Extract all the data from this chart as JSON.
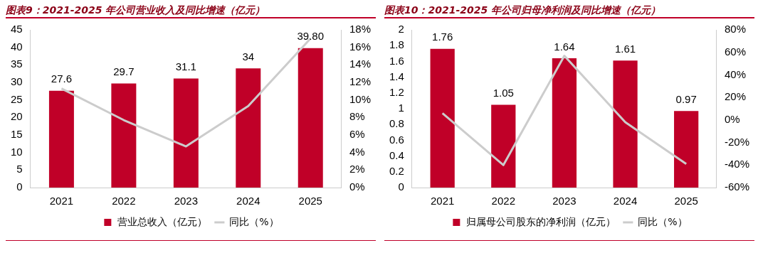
{
  "chart_data": [
    {
      "type": "bar",
      "title": "图表9：2021-2025 年公司营业收入及同比增速（亿元）",
      "categories": [
        "2021",
        "2022",
        "2023",
        "2024",
        "2025"
      ],
      "series": [
        {
          "name": "营业总收入（亿元）",
          "color": "#c00028",
          "values": [
            27.6,
            29.7,
            31.1,
            34,
            39.8
          ],
          "value_labels": [
            "27.6",
            "29.7",
            "31.1",
            "34",
            "39.80"
          ]
        },
        {
          "name": "同比（%）",
          "type": "line",
          "axis": "y2",
          "color": "#cccccc",
          "values": [
            11.3,
            7.7,
            4.7,
            9.3,
            17.0
          ]
        }
      ],
      "ylim": [
        0,
        45
      ],
      "yticks": [
        0,
        5,
        10,
        15,
        20,
        25,
        30,
        35,
        40,
        45
      ],
      "y2lim": [
        0,
        18
      ],
      "y2ticks": [
        {
          "value": 0,
          "label": "0%"
        },
        {
          "value": 2,
          "label": "2%"
        },
        {
          "value": 4,
          "label": "4%"
        },
        {
          "value": 6,
          "label": "6%"
        },
        {
          "value": 8,
          "label": "8%"
        },
        {
          "value": 10,
          "label": "10%"
        },
        {
          "value": 12,
          "label": "12%"
        },
        {
          "value": 14,
          "label": "14%"
        },
        {
          "value": 16,
          "label": "16%"
        },
        {
          "value": 18,
          "label": "18%"
        }
      ],
      "grid": false,
      "legend": "bottom",
      "marker": "none"
    },
    {
      "type": "bar",
      "title": "图表10：2021-2025 年公司归母净利润及同比增速（亿元）",
      "categories": [
        "2021",
        "2022",
        "2023",
        "2024",
        "2025"
      ],
      "series": [
        {
          "name": "归属母公司股东的净利润（亿元）",
          "color": "#c00028",
          "values": [
            1.76,
            1.05,
            1.64,
            1.61,
            0.97
          ],
          "value_labels": [
            "1.76",
            "1.05",
            "1.64",
            "1.61",
            "0.97"
          ]
        },
        {
          "name": "同比（%）",
          "type": "line",
          "axis": "y2",
          "color": "#cccccc",
          "values": [
            6,
            -40,
            57,
            -2,
            -39
          ]
        }
      ],
      "ylim": [
        0,
        2
      ],
      "yticks": [
        0,
        0.2,
        0.4,
        0.6,
        0.8,
        1,
        1.2,
        1.4,
        1.6,
        1.8,
        2
      ],
      "y2lim": [
        -60,
        80
      ],
      "y2ticks": [
        {
          "value": -60,
          "label": "-60%"
        },
        {
          "value": -40,
          "label": "-40%"
        },
        {
          "value": -20,
          "label": "-20%"
        },
        {
          "value": 0,
          "label": "0%"
        },
        {
          "value": 20,
          "label": "20%"
        },
        {
          "value": 40,
          "label": "40%"
        },
        {
          "value": 60,
          "label": "60%"
        },
        {
          "value": 80,
          "label": "80%"
        }
      ],
      "grid": false,
      "legend": "bottom",
      "marker": "none"
    }
  ]
}
